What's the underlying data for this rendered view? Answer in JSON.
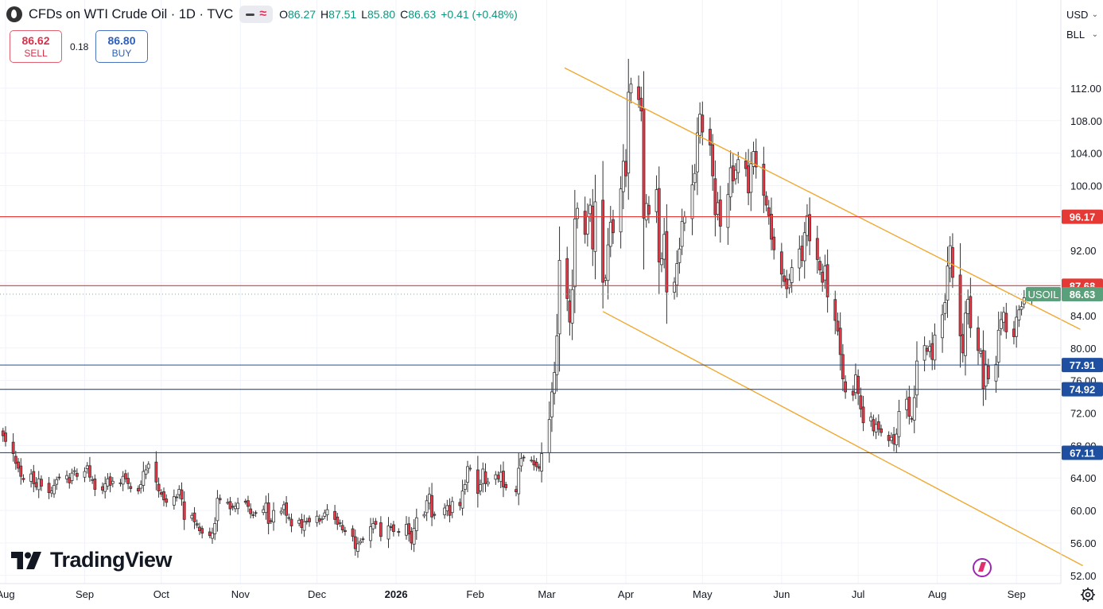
{
  "header": {
    "title": "CFDs on WTI Crude Oil · 1D · TVC",
    "ohlc": [
      {
        "k": "O",
        "v": "86.27"
      },
      {
        "k": "H",
        "v": "87.51"
      },
      {
        "k": "L",
        "v": "85.80"
      },
      {
        "k": "C",
        "v": "86.63"
      }
    ],
    "change": "+0.41 (+0.48%)"
  },
  "trade": {
    "sell_price": "86.62",
    "sell_label": "SELL",
    "spread": "0.18",
    "buy_price": "86.80",
    "buy_label": "BUY"
  },
  "top_right": {
    "currency": "USD",
    "unit": "BLL"
  },
  "logo": {
    "text": "TradingView"
  },
  "colors": {
    "up": "#089981",
    "down": "#f23645",
    "candle_body": "#2b2b2b",
    "resistance": "#e53935",
    "support": "#1e4fa0",
    "trendline": "#f0a830",
    "grid": "#f0f3fa",
    "last_price": "#5aa07a"
  },
  "chart_data": {
    "type": "candlestick",
    "title": "CFDs on WTI Crude Oil · 1D · TVC",
    "symbol": "USOIL",
    "y_range": [
      51,
      115
    ],
    "y_ticks": [
      "112.00",
      "108.00",
      "104.00",
      "100.00",
      "96.00",
      "92.00",
      "88.00",
      "84.00",
      "80.00",
      "76.00",
      "72.00",
      "68.00",
      "64.00",
      "60.00",
      "56.00",
      "52.00"
    ],
    "x_labels": [
      {
        "label": "Aug",
        "date": "2025-08-01"
      },
      {
        "label": "Sep",
        "date": "2025-09-01"
      },
      {
        "label": "Oct",
        "date": "2025-10-01"
      },
      {
        "label": "Nov",
        "date": "2025-11-01"
      },
      {
        "label": "Dec",
        "date": "2025-12-01"
      },
      {
        "label": "2026",
        "date": "2026-01-01"
      },
      {
        "label": "Feb",
        "date": "2026-02-01"
      },
      {
        "label": "Mar",
        "date": "2026-03-01"
      },
      {
        "label": "Apr",
        "date": "2026-04-01"
      },
      {
        "label": "May",
        "date": "2026-05-01"
      },
      {
        "label": "Jun",
        "date": "2026-06-01"
      },
      {
        "label": "Jul",
        "date": "2026-07-01"
      },
      {
        "label": "Aug",
        "date": "2026-08-01"
      },
      {
        "label": "Sep",
        "date": "2026-09-01"
      }
    ],
    "levels": [
      {
        "value": 96.17,
        "label": "96.17",
        "kind": "resistance"
      },
      {
        "value": 87.68,
        "label": "87.68",
        "kind": "resistance"
      },
      {
        "value": 77.91,
        "label": "77.91",
        "kind": "support"
      },
      {
        "value": 74.92,
        "label": "74.92",
        "kind": "support"
      },
      {
        "value": 67.11,
        "label": "67.11",
        "kind": "support"
      }
    ],
    "last_price": {
      "value": 86.63,
      "label": "86.63",
      "symbol": "USOIL"
    },
    "trendlines": [
      {
        "start": [
          "2026-03-08",
          114.5
        ],
        "end": [
          "2026-09-26",
          82.3
        ]
      },
      {
        "start": [
          "2026-03-23",
          84.5
        ],
        "end": [
          "2026-09-27",
          53.2
        ]
      }
    ],
    "closes": [
      [
        "2025-07-31",
        69.2
      ],
      [
        "2025-08-01",
        68.5
      ],
      [
        "2025-08-04",
        67.0
      ],
      [
        "2025-08-05",
        65.8
      ],
      [
        "2025-08-06",
        65.2
      ],
      [
        "2025-08-07",
        64.2
      ],
      [
        "2025-08-08",
        63.8
      ],
      [
        "2025-08-11",
        64.5
      ],
      [
        "2025-08-12",
        63.3
      ],
      [
        "2025-08-13",
        62.9
      ],
      [
        "2025-08-14",
        63.9
      ],
      [
        "2025-08-15",
        63.0
      ],
      [
        "2025-08-18",
        62.2
      ],
      [
        "2025-08-19",
        62.4
      ],
      [
        "2025-08-20",
        63.1
      ],
      [
        "2025-08-21",
        63.8
      ],
      [
        "2025-08-22",
        64.1
      ],
      [
        "2025-08-25",
        64.3
      ],
      [
        "2025-08-26",
        63.4
      ],
      [
        "2025-08-27",
        64.6
      ],
      [
        "2025-08-28",
        64.9
      ],
      [
        "2025-08-29",
        64.2
      ],
      [
        "2025-09-01",
        64.8
      ],
      [
        "2025-09-02",
        65.5
      ],
      [
        "2025-09-03",
        64.1
      ],
      [
        "2025-09-04",
        63.8
      ],
      [
        "2025-09-05",
        62.6
      ],
      [
        "2025-09-08",
        62.5
      ],
      [
        "2025-09-09",
        63.3
      ],
      [
        "2025-09-10",
        63.9
      ],
      [
        "2025-09-11",
        63.1
      ],
      [
        "2025-09-12",
        63.6
      ],
      [
        "2025-09-15",
        63.4
      ],
      [
        "2025-09-16",
        64.2
      ],
      [
        "2025-09-17",
        63.9
      ],
      [
        "2025-09-18",
        63.3
      ],
      [
        "2025-09-19",
        62.7
      ],
      [
        "2025-09-22",
        62.4
      ],
      [
        "2025-09-23",
        63.2
      ],
      [
        "2025-09-24",
        64.8
      ],
      [
        "2025-09-25",
        65.0
      ],
      [
        "2025-09-26",
        65.7
      ],
      [
        "2025-09-29",
        63.5
      ],
      [
        "2025-09-30",
        62.4
      ],
      [
        "2025-10-01",
        62.0
      ],
      [
        "2025-10-02",
        61.3
      ],
      [
        "2025-10-03",
        61.0
      ],
      [
        "2025-10-06",
        61.7
      ],
      [
        "2025-10-07",
        61.6
      ],
      [
        "2025-10-08",
        62.6
      ],
      [
        "2025-10-09",
        61.4
      ],
      [
        "2025-10-10",
        58.9
      ],
      [
        "2025-10-13",
        59.4
      ],
      [
        "2025-10-14",
        58.6
      ],
      [
        "2025-10-15",
        58.2
      ],
      [
        "2025-10-16",
        57.5
      ],
      [
        "2025-10-17",
        57.2
      ],
      [
        "2025-10-20",
        56.9
      ],
      [
        "2025-10-21",
        57.2
      ],
      [
        "2025-10-22",
        58.4
      ],
      [
        "2025-10-23",
        61.5
      ],
      [
        "2025-10-24",
        61.3
      ],
      [
        "2025-10-27",
        61.0
      ],
      [
        "2025-10-28",
        60.2
      ],
      [
        "2025-10-29",
        60.4
      ],
      [
        "2025-10-30",
        60.5
      ],
      [
        "2025-10-31",
        60.9
      ],
      [
        "2025-11-03",
        61.0
      ],
      [
        "2025-11-04",
        60.5
      ],
      [
        "2025-11-05",
        59.6
      ],
      [
        "2025-11-06",
        59.4
      ],
      [
        "2025-11-07",
        59.7
      ],
      [
        "2025-11-10",
        60.1
      ],
      [
        "2025-11-11",
        60.9
      ],
      [
        "2025-11-12",
        58.4
      ],
      [
        "2025-11-13",
        58.7
      ],
      [
        "2025-11-14",
        60.0
      ],
      [
        "2025-11-17",
        59.9
      ],
      [
        "2025-11-18",
        60.7
      ],
      [
        "2025-11-19",
        59.4
      ],
      [
        "2025-11-20",
        59.1
      ],
      [
        "2025-11-21",
        58.1
      ],
      [
        "2025-11-24",
        58.8
      ],
      [
        "2025-11-25",
        57.9
      ],
      [
        "2025-11-26",
        58.6
      ],
      [
        "2025-11-27",
        58.7
      ],
      [
        "2025-11-28",
        58.6
      ],
      [
        "2025-12-01",
        59.3
      ],
      [
        "2025-12-02",
        58.7
      ],
      [
        "2025-12-03",
        59.0
      ],
      [
        "2025-12-04",
        59.7
      ],
      [
        "2025-12-05",
        60.1
      ],
      [
        "2025-12-08",
        58.9
      ],
      [
        "2025-12-09",
        58.3
      ],
      [
        "2025-12-10",
        58.5
      ],
      [
        "2025-12-11",
        57.6
      ],
      [
        "2025-12-12",
        57.4
      ],
      [
        "2025-12-15",
        56.8
      ],
      [
        "2025-12-16",
        55.3
      ],
      [
        "2025-12-17",
        55.9
      ],
      [
        "2025-12-18",
        56.2
      ],
      [
        "2025-12-19",
        56.5
      ],
      [
        "2025-12-22",
        58.0
      ],
      [
        "2025-12-23",
        58.4
      ],
      [
        "2025-12-24",
        58.3
      ],
      [
        "2025-12-26",
        56.8
      ],
      [
        "2025-12-29",
        58.1
      ],
      [
        "2025-12-30",
        57.9
      ],
      [
        "2025-12-31",
        57.4
      ],
      [
        "2026-01-02",
        57.3
      ],
      [
        "2026-01-05",
        58.3
      ],
      [
        "2026-01-06",
        57.1
      ],
      [
        "2026-01-07",
        56.0
      ],
      [
        "2026-01-08",
        57.8
      ],
      [
        "2026-01-09",
        59.1
      ],
      [
        "2026-01-12",
        59.5
      ],
      [
        "2026-01-13",
        61.2
      ],
      [
        "2026-01-14",
        62.0
      ],
      [
        "2026-01-15",
        59.2
      ],
      [
        "2026-01-16",
        59.4
      ],
      [
        "2026-01-20",
        60.3
      ],
      [
        "2026-01-21",
        60.6
      ],
      [
        "2026-01-22",
        59.4
      ],
      [
        "2026-01-23",
        61.1
      ],
      [
        "2026-01-26",
        60.6
      ],
      [
        "2026-01-27",
        62.4
      ],
      [
        "2026-01-28",
        63.2
      ],
      [
        "2026-01-29",
        65.4
      ],
      [
        "2026-01-30",
        65.2
      ],
      [
        "2026-02-02",
        62.1
      ],
      [
        "2026-02-03",
        63.2
      ],
      [
        "2026-02-04",
        65.1
      ],
      [
        "2026-02-05",
        63.3
      ],
      [
        "2026-02-06",
        63.5
      ],
      [
        "2026-02-09",
        64.4
      ],
      [
        "2026-02-10",
        63.9
      ],
      [
        "2026-02-11",
        64.7
      ],
      [
        "2026-02-12",
        62.9
      ],
      [
        "2026-02-13",
        62.8
      ],
      [
        "2026-02-17",
        62.3
      ],
      [
        "2026-02-18",
        65.2
      ],
      [
        "2026-02-19",
        66.4
      ],
      [
        "2026-02-20",
        66.5
      ],
      [
        "2026-02-23",
        66.2
      ],
      [
        "2026-02-24",
        65.6
      ],
      [
        "2026-02-25",
        65.4
      ],
      [
        "2026-02-26",
        65.2
      ],
      [
        "2026-02-27",
        67.0
      ],
      [
        "2026-03-02",
        71.2
      ],
      [
        "2026-03-03",
        74.6
      ],
      [
        "2026-03-04",
        77.0
      ],
      [
        "2026-03-05",
        81.5
      ],
      [
        "2026-03-06",
        90.8
      ],
      [
        "2026-03-09",
        86.1
      ],
      [
        "2026-03-10",
        83.2
      ],
      [
        "2026-03-11",
        87.2
      ],
      [
        "2026-03-12",
        95.9
      ],
      [
        "2026-03-13",
        97.2
      ],
      [
        "2026-03-16",
        94.0
      ],
      [
        "2026-03-17",
        96.2
      ],
      [
        "2026-03-18",
        97.6
      ],
      [
        "2026-03-19",
        92.2
      ],
      [
        "2026-03-20",
        98.0
      ],
      [
        "2026-03-23",
        88.1
      ],
      [
        "2026-03-24",
        88.6
      ],
      [
        "2026-03-25",
        92.7
      ],
      [
        "2026-03-26",
        95.5
      ],
      [
        "2026-03-27",
        94.2
      ],
      [
        "2026-03-30",
        99.6
      ],
      [
        "2026-03-31",
        103.0
      ],
      [
        "2026-04-01",
        101.2
      ],
      [
        "2026-04-02",
        111.5
      ],
      [
        "2026-04-03",
        112.5
      ],
      [
        "2026-04-06",
        110.6
      ],
      [
        "2026-04-07",
        109.2
      ],
      [
        "2026-04-08",
        96.0
      ],
      [
        "2026-04-09",
        97.8
      ],
      [
        "2026-04-10",
        96.5
      ],
      [
        "2026-04-13",
        99.5
      ],
      [
        "2026-04-14",
        90.6
      ],
      [
        "2026-04-15",
        91.0
      ],
      [
        "2026-04-16",
        94.0
      ],
      [
        "2026-04-17",
        86.9
      ],
      [
        "2026-04-20",
        88.1
      ],
      [
        "2026-04-21",
        90.4
      ],
      [
        "2026-04-22",
        92.2
      ],
      [
        "2026-04-23",
        95.6
      ],
      [
        "2026-04-24",
        96.2
      ],
      [
        "2026-04-27",
        100.1
      ],
      [
        "2026-04-28",
        101.5
      ],
      [
        "2026-04-29",
        106.5
      ],
      [
        "2026-04-30",
        108.8
      ],
      [
        "2026-05-01",
        106.6
      ],
      [
        "2026-05-04",
        105.0
      ],
      [
        "2026-05-05",
        101.2
      ],
      [
        "2026-05-06",
        96.4
      ],
      [
        "2026-05-07",
        97.9
      ],
      [
        "2026-05-08",
        95.0
      ],
      [
        "2026-05-11",
        98.9
      ],
      [
        "2026-05-12",
        102.2
      ],
      [
        "2026-05-13",
        100.6
      ],
      [
        "2026-05-14",
        101.9
      ],
      [
        "2026-05-15",
        103.2
      ],
      [
        "2026-05-18",
        102.1
      ],
      [
        "2026-05-19",
        99.1
      ],
      [
        "2026-05-20",
        102.7
      ],
      [
        "2026-05-21",
        104.2
      ],
      [
        "2026-05-22",
        102.3
      ],
      [
        "2026-05-25",
        98.8
      ],
      [
        "2026-05-26",
        97.6
      ],
      [
        "2026-05-27",
        96.3
      ],
      [
        "2026-05-28",
        93.4
      ],
      [
        "2026-05-29",
        92.1
      ],
      [
        "2026-06-01",
        89.1
      ],
      [
        "2026-06-02",
        88.2
      ],
      [
        "2026-06-03",
        87.3
      ],
      [
        "2026-06-04",
        88.4
      ],
      [
        "2026-06-05",
        89.9
      ],
      [
        "2026-06-08",
        92.2
      ],
      [
        "2026-06-09",
        90.8
      ],
      [
        "2026-06-10",
        94.2
      ],
      [
        "2026-06-11",
        96.3
      ],
      [
        "2026-06-12",
        93.2
      ],
      [
        "2026-06-15",
        90.9
      ],
      [
        "2026-06-16",
        89.6
      ],
      [
        "2026-06-17",
        88.1
      ],
      [
        "2026-06-18",
        90.1
      ],
      [
        "2026-06-19",
        86.3
      ],
      [
        "2026-06-22",
        83.4
      ],
      [
        "2026-06-23",
        82.1
      ],
      [
        "2026-06-24",
        79.2
      ],
      [
        "2026-06-25",
        76.2
      ],
      [
        "2026-06-26",
        74.6
      ],
      [
        "2026-06-29",
        74.2
      ],
      [
        "2026-06-30",
        76.7
      ],
      [
        "2026-07-01",
        74.4
      ],
      [
        "2026-07-02",
        72.5
      ],
      [
        "2026-07-03",
        70.8
      ],
      [
        "2026-07-06",
        71.5
      ],
      [
        "2026-07-07",
        69.8
      ],
      [
        "2026-07-08",
        70.6
      ],
      [
        "2026-07-09",
        70.0
      ],
      [
        "2026-07-10",
        69.6
      ],
      [
        "2026-07-13",
        68.6
      ],
      [
        "2026-07-14",
        69.0
      ],
      [
        "2026-07-15",
        68.2
      ],
      [
        "2026-07-16",
        69.4
      ],
      [
        "2026-07-17",
        72.2
      ],
      [
        "2026-07-20",
        73.7
      ],
      [
        "2026-07-21",
        71.6
      ],
      [
        "2026-07-22",
        71.3
      ],
      [
        "2026-07-23",
        73.9
      ],
      [
        "2026-07-24",
        78.4
      ],
      [
        "2026-07-27",
        80.3
      ],
      [
        "2026-07-28",
        79.6
      ],
      [
        "2026-07-29",
        80.2
      ],
      [
        "2026-07-30",
        78.6
      ],
      [
        "2026-07-31",
        81.6
      ],
      [
        "2026-08-03",
        84.1
      ],
      [
        "2026-08-04",
        85.6
      ],
      [
        "2026-08-05",
        90.1
      ],
      [
        "2026-08-06",
        92.6
      ],
      [
        "2026-08-07",
        88.7
      ],
      [
        "2026-08-10",
        81.5
      ],
      [
        "2026-08-11",
        79.4
      ],
      [
        "2026-08-12",
        84.3
      ],
      [
        "2026-08-13",
        86.0
      ],
      [
        "2026-08-14",
        82.5
      ],
      [
        "2026-08-17",
        79.7
      ],
      [
        "2026-08-18",
        79.6
      ],
      [
        "2026-08-19",
        75.0
      ],
      [
        "2026-08-20",
        78.0
      ],
      [
        "2026-08-21",
        76.2
      ],
      [
        "2026-08-24",
        78.0
      ],
      [
        "2026-08-25",
        82.2
      ],
      [
        "2026-08-26",
        83.5
      ],
      [
        "2026-08-27",
        84.4
      ],
      [
        "2026-08-28",
        82.0
      ],
      [
        "2026-08-31",
        81.4
      ],
      [
        "2026-09-01",
        83.8
      ],
      [
        "2026-09-02",
        84.7
      ],
      [
        "2026-09-03",
        85.1
      ],
      [
        "2026-09-04",
        86.2
      ],
      [
        "2026-09-07",
        86.63
      ]
    ]
  }
}
